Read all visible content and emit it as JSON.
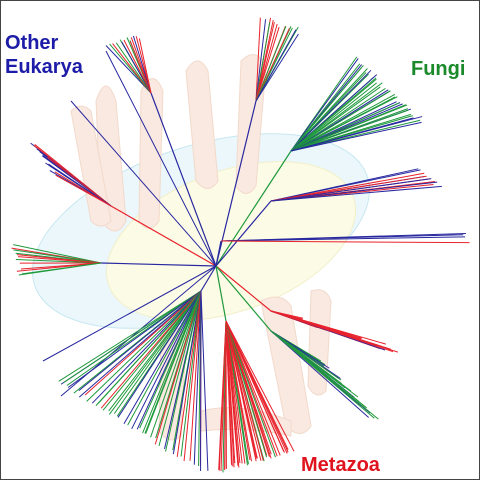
{
  "labels": {
    "other_eukarya": "Other Eukarya",
    "fungi": "Fungi",
    "metazoa": "Metazoa"
  }
}
